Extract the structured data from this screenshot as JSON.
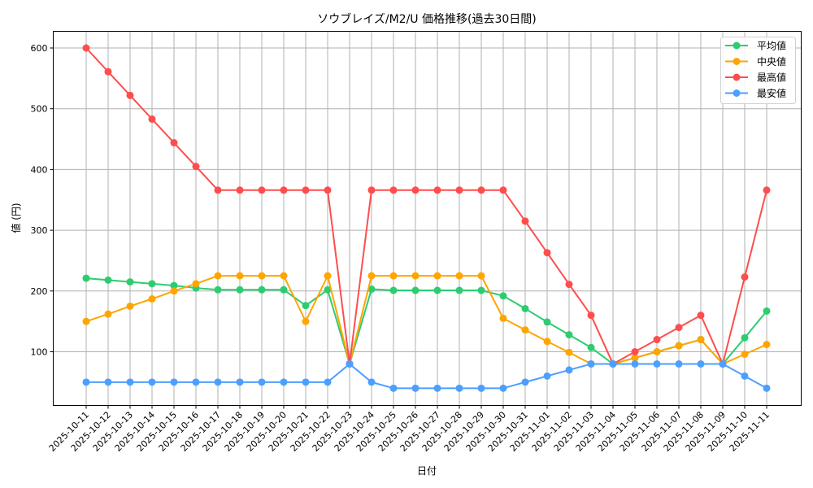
{
  "chart_data": {
    "type": "line",
    "title": "ソウブレイズ/M2/U 価格推移(過去30日間)",
    "xlabel": "日付",
    "ylabel": "値 (円)",
    "ylim": [
      12,
      628
    ],
    "yticks": [
      100,
      200,
      300,
      400,
      500,
      600
    ],
    "grid": true,
    "legend_position": "upper right",
    "x": [
      "2025-10-11",
      "2025-10-12",
      "2025-10-13",
      "2025-10-14",
      "2025-10-15",
      "2025-10-16",
      "2025-10-17",
      "2025-10-18",
      "2025-10-19",
      "2025-10-20",
      "2025-10-21",
      "2025-10-22",
      "2025-10-23",
      "2025-10-24",
      "2025-10-25",
      "2025-10-26",
      "2025-10-27",
      "2025-10-28",
      "2025-10-29",
      "2025-10-30",
      "2025-10-31",
      "2025-11-01",
      "2025-11-02",
      "2025-11-03",
      "2025-11-04",
      "2025-11-05",
      "2025-11-06",
      "2025-11-07",
      "2025-11-08",
      "2025-11-09",
      "2025-11-10",
      "2025-11-11"
    ],
    "series": [
      {
        "name": "平均値",
        "color": "#2ecc71",
        "values": [
          221,
          218,
          215,
          212,
          209,
          205,
          202,
          202,
          202,
          202,
          176,
          202,
          80,
          203,
          201,
          201,
          201,
          201,
          201,
          192,
          171,
          149,
          128,
          107,
          80,
          90,
          100,
          110,
          120,
          80,
          123,
          167
        ]
      },
      {
        "name": "中央値",
        "color": "#ffa500",
        "values": [
          150,
          162,
          175,
          187,
          200,
          212,
          225,
          225,
          225,
          225,
          150,
          225,
          80,
          225,
          225,
          225,
          225,
          225,
          225,
          155,
          136,
          117,
          99,
          80,
          80,
          90,
          100,
          110,
          120,
          80,
          96,
          112
        ]
      },
      {
        "name": "最高値",
        "color": "#ff4d4d",
        "values": [
          600,
          561,
          522,
          483,
          444,
          405,
          366,
          366,
          366,
          366,
          366,
          366,
          80,
          366,
          366,
          366,
          366,
          366,
          366,
          366,
          315,
          263,
          211,
          160,
          80,
          100,
          120,
          140,
          160,
          80,
          223,
          366
        ]
      },
      {
        "name": "最安値",
        "color": "#4d9fff",
        "values": [
          50,
          50,
          50,
          50,
          50,
          50,
          50,
          50,
          50,
          50,
          50,
          50,
          80,
          50,
          40,
          40,
          40,
          40,
          40,
          40,
          50,
          60,
          70,
          80,
          80,
          80,
          80,
          80,
          80,
          80,
          60,
          40
        ]
      }
    ]
  }
}
